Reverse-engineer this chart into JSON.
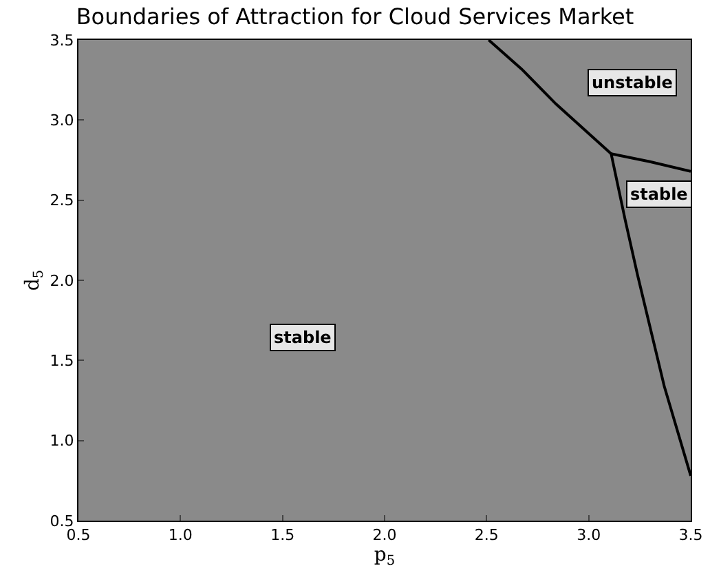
{
  "chart_data": {
    "type": "line",
    "title": "Boundaries of Attraction for Cloud Services Market",
    "xlabel": "p$_{5}$",
    "ylabel": "d$_{5}$",
    "xlim": [
      0.5,
      3.5
    ],
    "ylim": [
      0.5,
      3.5
    ],
    "xticks": [
      0.5,
      {
        "value": 1,
        "label": "1.0"
      },
      1.5,
      {
        "value": 2,
        "label": "2.0"
      },
      2.5,
      {
        "value": 3,
        "label": "3.0"
      },
      3.5
    ],
    "yticks": [
      0.5,
      {
        "value": 1,
        "label": "1.0"
      },
      1.5,
      {
        "value": 2,
        "label": "2.0"
      },
      2.5,
      {
        "value": 3,
        "label": "3.0"
      },
      3.5
    ],
    "grid": false,
    "marker": "none",
    "line_style": "solid",
    "series": [
      {
        "color": "#000000",
        "x": [
          2.51,
          2.67,
          2.84,
          3.11
        ],
        "values": [
          3.5,
          3.32,
          3.1,
          2.79
        ]
      },
      {
        "color": "#000000",
        "x": [
          3.11,
          3.3,
          3.5
        ],
        "values": [
          2.79,
          2.74,
          2.68
        ]
      },
      {
        "color": "#000000",
        "x": [
          3.11,
          3.18,
          3.24,
          3.37,
          3.5
        ],
        "values": [
          2.79,
          2.37,
          2.03,
          1.34,
          0.78
        ]
      }
    ],
    "annotations": [
      "unstable",
      "stable",
      "stable"
    ]
  }
}
